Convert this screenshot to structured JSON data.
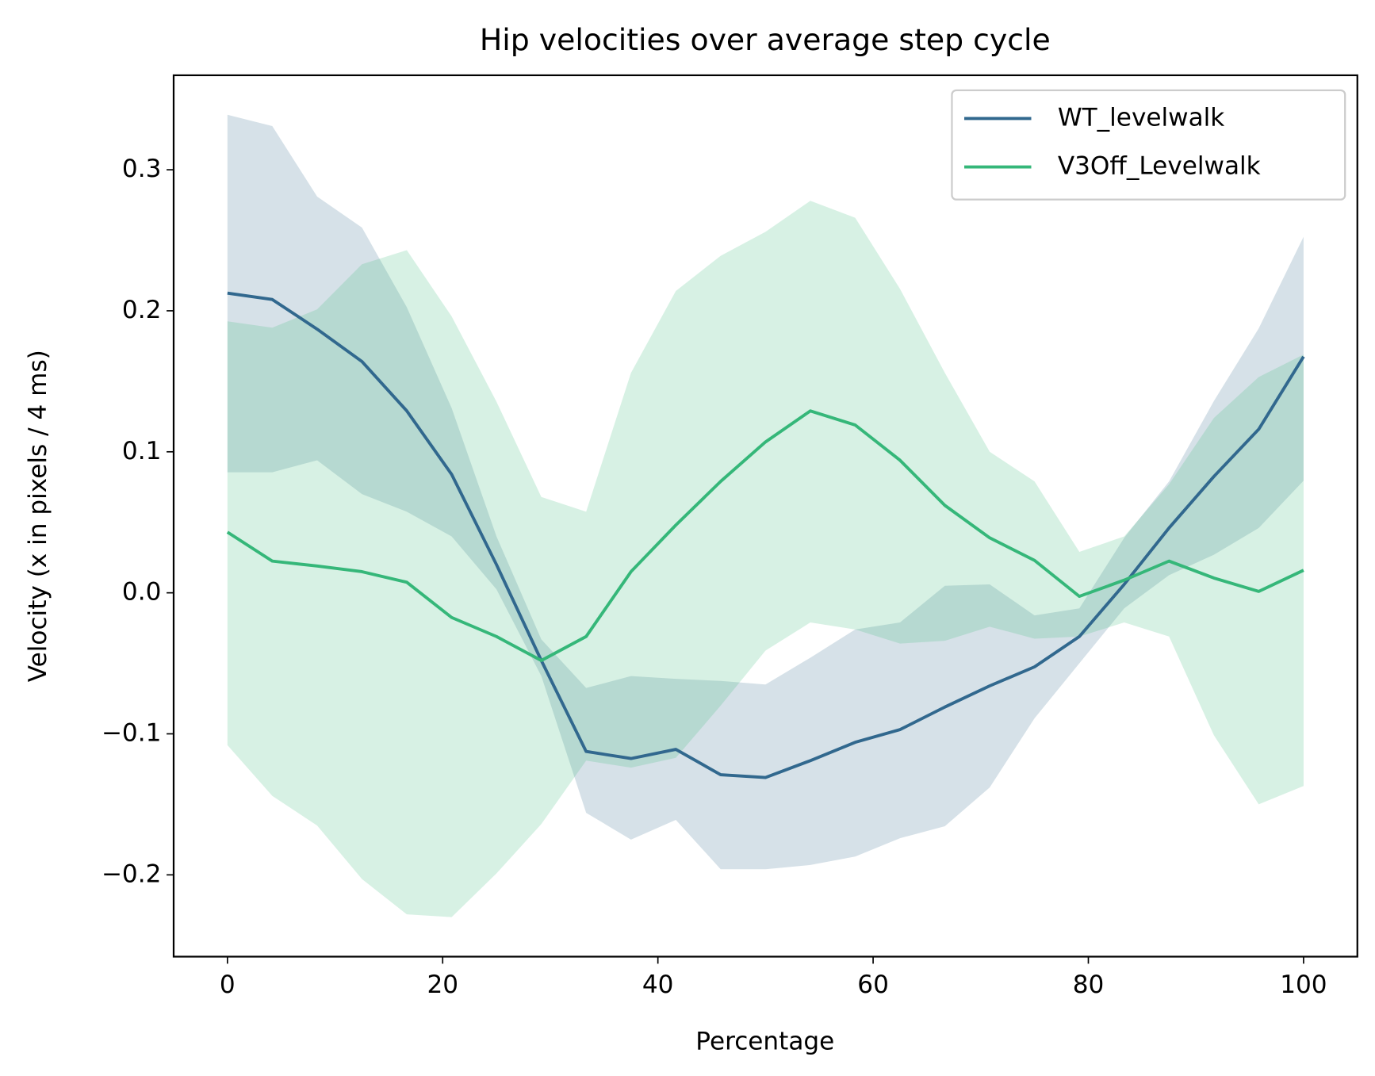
{
  "chart_data": {
    "type": "line",
    "title": "Hip velocities over average step cycle",
    "xlabel": "Percentage",
    "ylabel": "Velocity (x in pixels / 4 ms)",
    "x": [
      0,
      4.1667,
      8.3333,
      12.5,
      16.6667,
      20.8333,
      25,
      29.1667,
      33.3333,
      37.5,
      41.6667,
      45.8333,
      50,
      54.1667,
      58.3333,
      62.5,
      66.6667,
      70.8333,
      75,
      79.1667,
      83.3333,
      87.5,
      91.6667,
      95.8333,
      100
    ],
    "xlim": [
      -5,
      105
    ],
    "xticks": [
      0,
      20,
      40,
      60,
      80,
      100
    ],
    "ylim": [
      -0.258,
      0.367
    ],
    "yticks": [
      {
        "value": -0.2,
        "label": "−0.2"
      },
      {
        "value": -0.1,
        "label": "−0.1"
      },
      {
        "value": 0,
        "label": "0.0"
      },
      0.1,
      0.2,
      0.3
    ],
    "legend": "upper right",
    "band_opacity": 0.2,
    "series": [
      {
        "name": "WT_levelwalk",
        "color": "#31688e",
        "values": [
          0.2125,
          0.208,
          0.187,
          0.164,
          0.129,
          0.084,
          0.02,
          -0.048,
          -0.1125,
          -0.1175,
          -0.111,
          -0.129,
          -0.131,
          -0.119,
          -0.106,
          -0.097,
          -0.081,
          -0.066,
          -0.0525,
          -0.031,
          0.006,
          0.046,
          0.0825,
          0.116,
          0.1675
        ],
        "upper": [
          0.339,
          0.331,
          0.281,
          0.259,
          0.2025,
          0.131,
          0.04,
          -0.033,
          -0.0675,
          -0.059,
          -0.061,
          -0.0625,
          -0.065,
          -0.046,
          -0.026,
          -0.021,
          0.005,
          0.006,
          -0.016,
          -0.011,
          0.039,
          0.079,
          0.136,
          0.1875,
          0.2525
        ],
        "lower": [
          0.0855,
          0.0855,
          0.094,
          0.07,
          0.0575,
          0.04,
          0.0025,
          -0.059,
          -0.156,
          -0.175,
          -0.161,
          -0.196,
          -0.196,
          -0.193,
          -0.187,
          -0.174,
          -0.1655,
          -0.138,
          -0.089,
          -0.05,
          -0.011,
          0.0125,
          0.027,
          0.046,
          0.0795
        ]
      },
      {
        "name": "V3Off_Levelwalk",
        "color": "#35b779",
        "values": [
          0.043,
          0.0225,
          0.019,
          0.015,
          0.0075,
          -0.0175,
          -0.031,
          -0.048,
          -0.031,
          0.015,
          0.048,
          0.079,
          0.107,
          0.129,
          0.119,
          0.094,
          0.062,
          0.039,
          0.023,
          -0.0025,
          0.009,
          0.0225,
          0.0105,
          0.001,
          0.016
        ],
        "upper": [
          0.1925,
          0.188,
          0.201,
          0.233,
          0.243,
          0.196,
          0.1355,
          0.068,
          0.0575,
          0.156,
          0.214,
          0.239,
          0.256,
          0.278,
          0.266,
          0.2155,
          0.156,
          0.1,
          0.079,
          0.029,
          0.04,
          0.077,
          0.124,
          0.153,
          0.169
        ],
        "lower": [
          -0.108,
          -0.144,
          -0.165,
          -0.203,
          -0.228,
          -0.23,
          -0.199,
          -0.164,
          -0.119,
          -0.124,
          -0.117,
          -0.08,
          -0.041,
          -0.021,
          -0.026,
          -0.036,
          -0.034,
          -0.024,
          -0.0325,
          -0.031,
          -0.021,
          -0.031,
          -0.101,
          -0.15,
          -0.137
        ]
      }
    ]
  }
}
